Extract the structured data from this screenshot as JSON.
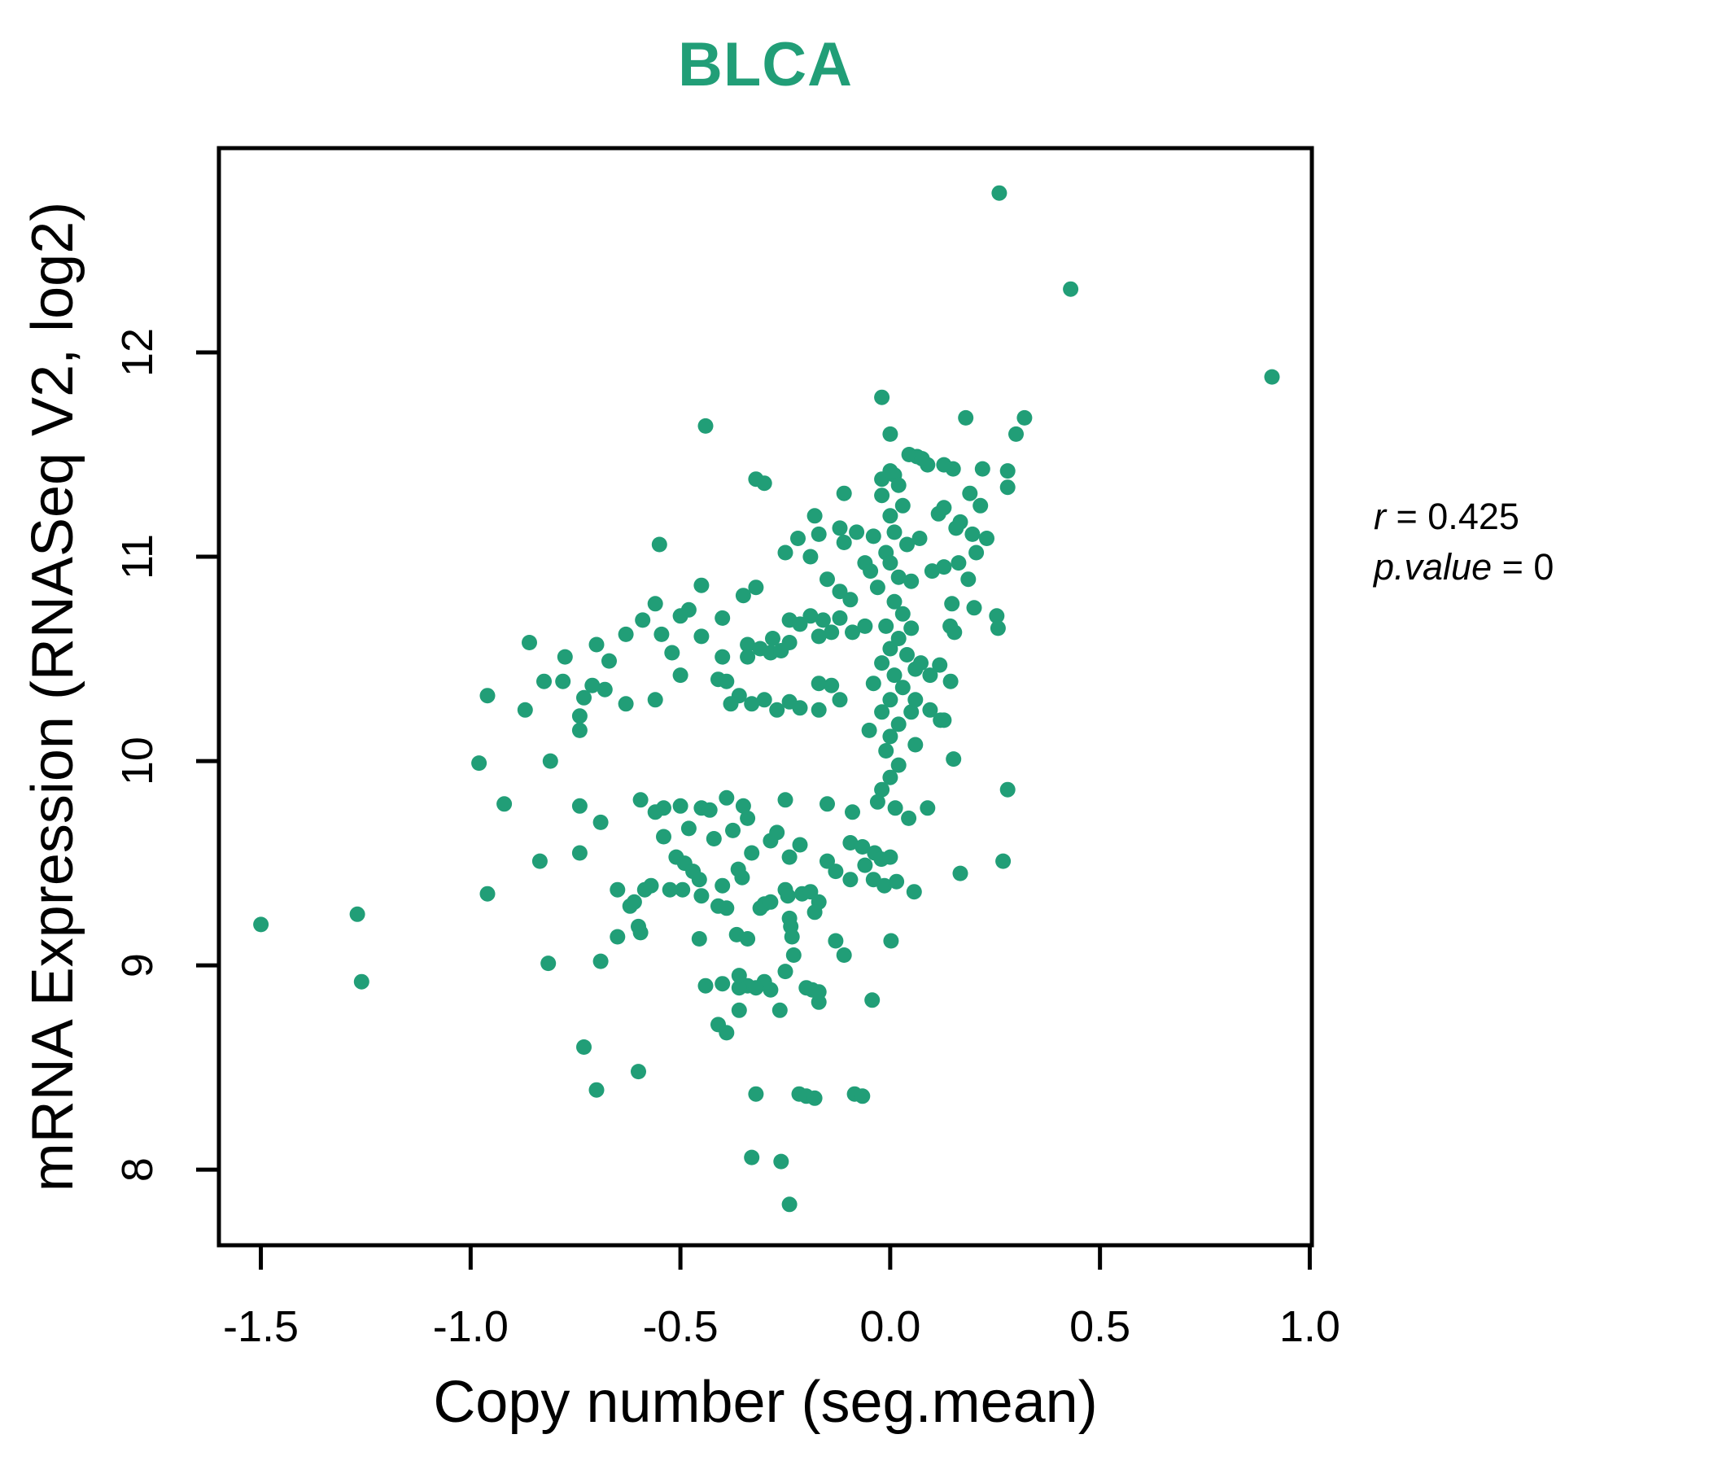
{
  "figure": {
    "title": "BLCA",
    "title_color": "#219E77"
  },
  "axes": {
    "xlabel": "Copy number (seg.mean)",
    "ylabel": "mRNA Expression (RNASeq V2, log2)",
    "x_tick_values": [
      -1.5,
      -1.0,
      -0.5,
      0.0,
      0.5,
      1.0
    ],
    "x_tick_labels": [
      "-1.5",
      "-1.0",
      "-0.5",
      "0.0",
      "0.5",
      "1.0"
    ],
    "y_tick_values": [
      8,
      9,
      10,
      11,
      12
    ],
    "y_tick_labels": [
      "8",
      "9",
      "10",
      "11",
      "12"
    ]
  },
  "annotation": {
    "line1_var": "r",
    "line1_rest": " = 0.425",
    "line2_var": "p.value",
    "line2_rest": " = 0"
  },
  "chart_data": {
    "type": "scatter",
    "title": "BLCA",
    "xlabel": "Copy number (seg.mean)",
    "ylabel": "mRNA Expression (RNASeq V2, log2)",
    "xlim": [
      -1.6,
      1.005
    ],
    "ylim": [
      7.63,
      13.0
    ],
    "grid": false,
    "point_color": "#219E77",
    "correlation_r": 0.425,
    "p_value": 0,
    "points": [
      [
        0.26,
        12.78
      ],
      [
        0.43,
        12.31
      ],
      [
        0.91,
        11.88
      ],
      [
        -0.02,
        11.78
      ],
      [
        -0.44,
        11.64
      ],
      [
        -0.32,
        11.38
      ],
      [
        0.0,
        11.6
      ],
      [
        0.045,
        11.5
      ],
      [
        0.064,
        11.49
      ],
      [
        0.01,
        11.4
      ],
      [
        -0.02,
        11.38
      ],
      [
        0.089,
        11.45
      ],
      [
        0.076,
        11.48
      ],
      [
        -0.3,
        11.36
      ],
      [
        0.18,
        11.68
      ],
      [
        0.32,
        11.68
      ],
      [
        0.3,
        11.6
      ],
      [
        0.15,
        11.43
      ],
      [
        0.22,
        11.43
      ],
      [
        0.28,
        11.42
      ],
      [
        0.28,
        11.34
      ],
      [
        0.19,
        11.31
      ],
      [
        0.215,
        11.25
      ],
      [
        0.167,
        11.17
      ],
      [
        0.157,
        11.14
      ],
      [
        0.196,
        11.11
      ],
      [
        0.23,
        11.09
      ],
      [
        0.205,
        11.02
      ],
      [
        0.163,
        10.97
      ],
      [
        0.186,
        10.89
      ],
      [
        0.147,
        10.77
      ],
      [
        0.2,
        10.75
      ],
      [
        0.254,
        10.71
      ],
      [
        0.143,
        10.66
      ],
      [
        0.115,
        11.21
      ],
      [
        0.07,
        11.09
      ],
      [
        0.1,
        10.93
      ],
      [
        0.128,
        11.45
      ],
      [
        0.128,
        11.24
      ],
      [
        0.128,
        10.95
      ],
      [
        0.0,
        11.42
      ],
      [
        0.02,
        11.35
      ],
      [
        -0.02,
        11.3
      ],
      [
        0.03,
        11.25
      ],
      [
        0.0,
        11.2
      ],
      [
        0.01,
        11.12
      ],
      [
        0.04,
        11.06
      ],
      [
        -0.01,
        11.02
      ],
      [
        0.0,
        10.97
      ],
      [
        0.02,
        10.9
      ],
      [
        -0.03,
        10.85
      ],
      [
        0.01,
        10.78
      ],
      [
        0.03,
        10.72
      ],
      [
        -0.01,
        10.66
      ],
      [
        0.02,
        10.6
      ],
      [
        0.0,
        10.55
      ],
      [
        -0.02,
        10.48
      ],
      [
        0.01,
        10.42
      ],
      [
        0.03,
        10.36
      ],
      [
        0.0,
        10.3
      ],
      [
        -0.02,
        10.24
      ],
      [
        0.02,
        10.18
      ],
      [
        0.0,
        10.12
      ],
      [
        -0.01,
        10.05
      ],
      [
        0.02,
        9.98
      ],
      [
        0.0,
        9.92
      ],
      [
        -0.02,
        9.86
      ],
      [
        0.04,
        10.52
      ],
      [
        0.05,
        10.24
      ],
      [
        0.06,
        10.45
      ],
      [
        0.05,
        10.65
      ],
      [
        -0.04,
        10.38
      ],
      [
        -0.05,
        10.15
      ],
      [
        0.06,
        10.08
      ],
      [
        -0.04,
        11.1
      ],
      [
        0.05,
        10.88
      ],
      [
        -0.11,
        11.31
      ],
      [
        -0.18,
        11.2
      ],
      [
        -0.12,
        11.14
      ],
      [
        -0.17,
        11.11
      ],
      [
        -0.11,
        11.07
      ],
      [
        -0.22,
        11.09
      ],
      [
        -0.25,
        11.02
      ],
      [
        -0.19,
        11.0
      ],
      [
        -0.08,
        11.12
      ],
      [
        -0.06,
        10.97
      ],
      [
        -0.15,
        10.89
      ],
      [
        -0.12,
        10.83
      ],
      [
        -0.095,
        10.79
      ],
      [
        -0.047,
        10.93
      ],
      [
        -0.86,
        10.58
      ],
      [
        -0.775,
        10.51
      ],
      [
        -0.825,
        10.39
      ],
      [
        -0.78,
        10.39
      ],
      [
        -0.96,
        10.32
      ],
      [
        -0.87,
        10.25
      ],
      [
        -0.73,
        10.31
      ],
      [
        -0.74,
        10.22
      ],
      [
        -0.74,
        10.15
      ],
      [
        -0.98,
        9.99
      ],
      [
        -0.81,
        10.0
      ],
      [
        -0.92,
        9.79
      ],
      [
        -0.74,
        9.78
      ],
      [
        -0.835,
        9.51
      ],
      [
        -0.74,
        9.55
      ],
      [
        -0.96,
        9.35
      ],
      [
        -0.55,
        11.06
      ],
      [
        -0.63,
        10.62
      ],
      [
        -0.7,
        10.57
      ],
      [
        -0.67,
        10.49
      ],
      [
        -0.68,
        10.35
      ],
      [
        -0.71,
        10.37
      ],
      [
        -0.63,
        10.28
      ],
      [
        -0.56,
        10.3
      ],
      [
        -0.56,
        10.77
      ],
      [
        -0.59,
        10.69
      ],
      [
        -0.545,
        10.62
      ],
      [
        -0.48,
        10.74
      ],
      [
        -0.5,
        10.71
      ],
      [
        -0.45,
        10.86
      ],
      [
        -0.45,
        10.61
      ],
      [
        -0.4,
        10.7
      ],
      [
        -0.52,
        10.53
      ],
      [
        -0.5,
        10.42
      ],
      [
        -0.4,
        10.51
      ],
      [
        -0.41,
        10.4
      ],
      [
        -0.39,
        10.39
      ],
      [
        -0.34,
        10.57
      ],
      [
        -0.34,
        10.51
      ],
      [
        -0.31,
        10.55
      ],
      [
        -0.28,
        10.6
      ],
      [
        -0.285,
        10.53
      ],
      [
        -0.26,
        10.54
      ],
      [
        -0.24,
        10.58
      ],
      [
        -0.24,
        10.69
      ],
      [
        -0.215,
        10.67
      ],
      [
        -0.19,
        10.71
      ],
      [
        -0.16,
        10.69
      ],
      [
        -0.14,
        10.63
      ],
      [
        -0.17,
        10.61
      ],
      [
        -0.12,
        10.7
      ],
      [
        -0.09,
        10.63
      ],
      [
        -0.06,
        10.66
      ],
      [
        -0.17,
        10.38
      ],
      [
        -0.14,
        10.37
      ],
      [
        -0.12,
        10.3
      ],
      [
        -0.17,
        10.25
      ],
      [
        -0.215,
        10.26
      ],
      [
        -0.24,
        10.29
      ],
      [
        -0.27,
        10.25
      ],
      [
        -0.3,
        10.3
      ],
      [
        -0.33,
        10.28
      ],
      [
        -0.36,
        10.32
      ],
      [
        -0.38,
        10.28
      ],
      [
        -0.32,
        10.85
      ],
      [
        -0.35,
        10.81
      ],
      [
        0.073,
        10.48
      ],
      [
        0.095,
        10.42
      ],
      [
        0.118,
        10.47
      ],
      [
        0.06,
        10.3
      ],
      [
        0.095,
        10.25
      ],
      [
        0.12,
        10.2
      ],
      [
        0.153,
        10.63
      ],
      [
        0.257,
        10.65
      ],
      [
        0.144,
        10.39
      ],
      [
        0.128,
        10.2
      ],
      [
        0.151,
        10.01
      ],
      [
        0.28,
        9.86
      ],
      [
        0.269,
        9.51
      ],
      [
        0.167,
        9.45
      ],
      [
        -0.595,
        9.81
      ],
      [
        -0.56,
        9.75
      ],
      [
        -0.54,
        9.77
      ],
      [
        -0.5,
        9.78
      ],
      [
        -0.45,
        9.77
      ],
      [
        -0.43,
        9.76
      ],
      [
        -0.39,
        9.82
      ],
      [
        -0.35,
        9.78
      ],
      [
        -0.34,
        9.72
      ],
      [
        -0.25,
        9.81
      ],
      [
        -0.15,
        9.79
      ],
      [
        -0.09,
        9.75
      ],
      [
        -0.03,
        9.8
      ],
      [
        0.012,
        9.77
      ],
      [
        0.044,
        9.72
      ],
      [
        0.089,
        9.77
      ],
      [
        -0.69,
        9.7
      ],
      [
        -0.48,
        9.67
      ],
      [
        -0.54,
        9.63
      ],
      [
        -0.42,
        9.62
      ],
      [
        -0.375,
        9.66
      ],
      [
        -0.33,
        9.55
      ],
      [
        -0.285,
        9.61
      ],
      [
        -0.27,
        9.65
      ],
      [
        -0.215,
        9.59
      ],
      [
        -0.24,
        9.53
      ],
      [
        -0.095,
        9.6
      ],
      [
        -0.066,
        9.58
      ],
      [
        -0.037,
        9.55
      ],
      [
        -0.021,
        9.52
      ],
      [
        0.0,
        9.53
      ],
      [
        -0.06,
        9.49
      ],
      [
        -0.095,
        9.42
      ],
      [
        -0.04,
        9.42
      ],
      [
        -0.014,
        9.39
      ],
      [
        0.015,
        9.41
      ],
      [
        0.057,
        9.36
      ],
      [
        -0.15,
        9.51
      ],
      [
        -0.13,
        9.46
      ],
      [
        -0.51,
        9.53
      ],
      [
        -0.49,
        9.5
      ],
      [
        -0.47,
        9.46
      ],
      [
        -0.455,
        9.42
      ],
      [
        -0.45,
        9.34
      ],
      [
        -0.495,
        9.37
      ],
      [
        -0.525,
        9.37
      ],
      [
        -0.65,
        9.37
      ],
      [
        -0.61,
        9.31
      ],
      [
        -0.585,
        9.37
      ],
      [
        -0.57,
        9.39
      ],
      [
        -0.62,
        9.29
      ],
      [
        -0.4,
        9.39
      ],
      [
        -0.41,
        9.29
      ],
      [
        -0.39,
        9.28
      ],
      [
        -0.362,
        9.47
      ],
      [
        -0.353,
        9.43
      ],
      [
        -0.31,
        9.28
      ],
      [
        -0.3,
        9.3
      ],
      [
        -0.285,
        9.31
      ],
      [
        -0.25,
        9.37
      ],
      [
        -0.244,
        9.34
      ],
      [
        -0.21,
        9.35
      ],
      [
        -0.19,
        9.36
      ],
      [
        -0.17,
        9.31
      ],
      [
        -0.18,
        9.26
      ],
      [
        -0.24,
        9.23
      ],
      [
        -0.237,
        9.19
      ],
      [
        -0.234,
        9.14
      ],
      [
        -0.6,
        9.19
      ],
      [
        -0.595,
        9.16
      ],
      [
        -0.366,
        9.15
      ],
      [
        0.002,
        9.12
      ],
      [
        -0.65,
        9.14
      ],
      [
        -0.455,
        9.13
      ],
      [
        -0.34,
        9.13
      ],
      [
        -0.13,
        9.12
      ],
      [
        -0.815,
        9.01
      ],
      [
        -0.69,
        9.02
      ],
      [
        -0.23,
        9.05
      ],
      [
        -0.11,
        9.05
      ],
      [
        -0.25,
        8.97
      ],
      [
        -0.3,
        8.92
      ],
      [
        -0.34,
        8.9
      ],
      [
        -0.36,
        8.89
      ],
      [
        -0.2,
        8.89
      ],
      [
        -0.186,
        8.88
      ],
      [
        -0.17,
        8.87
      ],
      [
        -0.043,
        8.83
      ],
      [
        -1.26,
        8.92
      ],
      [
        -0.44,
        8.9
      ],
      [
        -0.4,
        8.91
      ],
      [
        -0.36,
        8.95
      ],
      [
        -0.32,
        8.89
      ],
      [
        -0.285,
        8.88
      ],
      [
        -0.17,
        8.82
      ],
      [
        -0.263,
        8.78
      ],
      [
        -0.36,
        8.78
      ],
      [
        -0.41,
        8.71
      ],
      [
        -0.39,
        8.67
      ],
      [
        -0.73,
        8.6
      ],
      [
        -0.6,
        8.48
      ],
      [
        -0.7,
        8.39
      ],
      [
        -0.32,
        8.37
      ],
      [
        -0.217,
        8.37
      ],
      [
        -0.2,
        8.36
      ],
      [
        -0.18,
        8.35
      ],
      [
        -0.085,
        8.37
      ],
      [
        -0.066,
        8.36
      ],
      [
        -0.33,
        8.06
      ],
      [
        -0.26,
        8.04
      ],
      [
        -0.24,
        7.83
      ],
      [
        -1.5,
        9.2
      ],
      [
        -1.27,
        9.25
      ]
    ]
  }
}
